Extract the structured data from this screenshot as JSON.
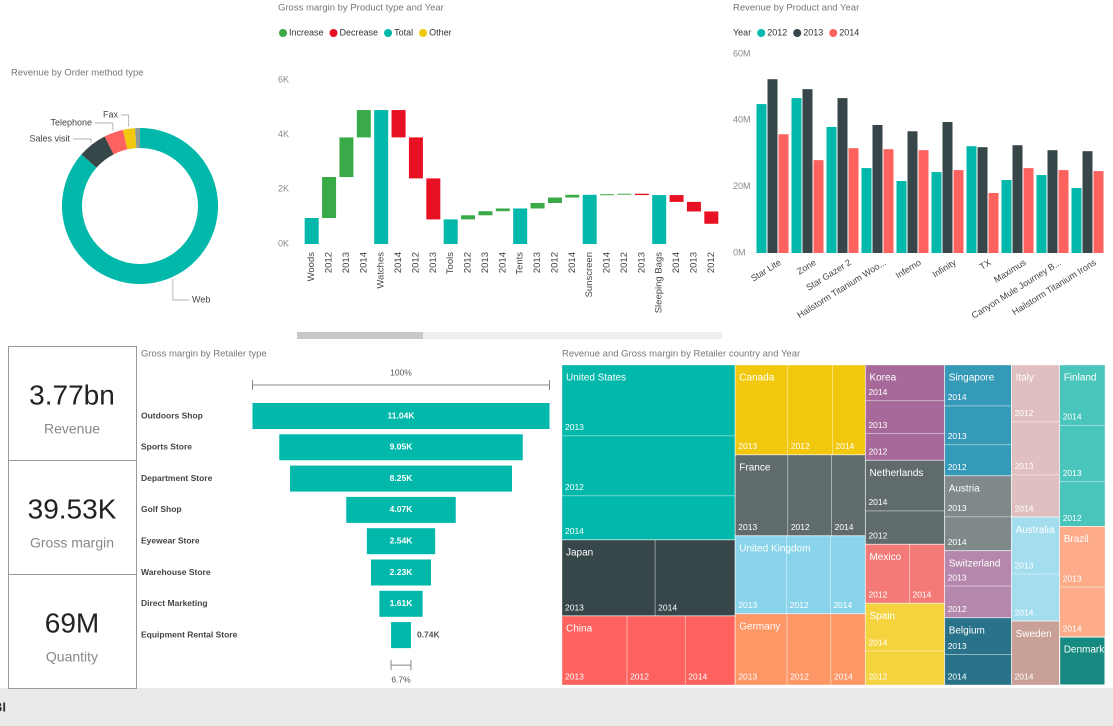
{
  "kpis": [
    {
      "value": "3.77bn",
      "label": "Revenue"
    },
    {
      "value": "39.53K",
      "label": "Gross margin"
    },
    {
      "value": "69M",
      "label": "Quantity"
    }
  ],
  "footer": {
    "text": "BI"
  },
  "chart_data": [
    {
      "type": "donut",
      "title": "Revenue by Order method type",
      "categories": [
        "Web",
        "Sales visit",
        "Telephone",
        "Fax",
        null
      ],
      "values": [
        86.5,
        6,
        4,
        2.5,
        1
      ],
      "colors": [
        "#01b8aa",
        "#374649",
        "#fd625e",
        "#f2c80f",
        "#8a9a9b"
      ]
    },
    {
      "type": "waterfall",
      "title": "Gross margin by Product type and Year",
      "legend": [
        {
          "name": "Increase",
          "color": "#3aaa48"
        },
        {
          "name": "Decrease",
          "color": "#e81123"
        },
        {
          "name": "Total",
          "color": "#01b8aa"
        },
        {
          "name": "Other",
          "color": "#f2c80f"
        }
      ],
      "categories": [
        "Woods",
        "2012",
        "2013",
        "2014",
        "Watches",
        "2014",
        "2012",
        "2013",
        "Tools",
        "2012",
        "2013",
        "2014",
        "Tents",
        "2013",
        "2012",
        "2014",
        "Sunscreen",
        "2014",
        "2012",
        "2013",
        "Sleeping Bags",
        "2014",
        "2013",
        "2012"
      ],
      "values": [
        950,
        1500,
        1450,
        1000,
        4900,
        -1000,
        -1500,
        -1500,
        900,
        150,
        150,
        100,
        1300,
        200,
        200,
        100,
        1800,
        20,
        20,
        -50,
        1790,
        -250,
        -350,
        -450
      ],
      "is_total": [
        true,
        false,
        false,
        false,
        true,
        false,
        false,
        false,
        true,
        false,
        false,
        false,
        true,
        false,
        false,
        false,
        true,
        false,
        false,
        false,
        true,
        false,
        false,
        false
      ],
      "ylim": [
        0,
        6000
      ],
      "yticks": [
        {
          "value": 0,
          "label": "0K"
        },
        {
          "value": 2000,
          "label": "2K"
        },
        {
          "value": 4000,
          "label": "4K"
        },
        {
          "value": 6000,
          "label": "6K"
        }
      ]
    },
    {
      "type": "bar",
      "title": "Revenue by Product and Year",
      "legend_title": "Year",
      "categories": [
        "Star Lite",
        "Zone",
        "Star Gazer 2",
        "Hailstorm Titanium Woo...",
        "Inferno",
        "Infinity",
        "TX",
        "Maximus",
        "Canyon Mule Journey B...",
        "Hailstorm Titanium Irons"
      ],
      "series": [
        {
          "name": "2012",
          "color": "#01b8aa",
          "values": [
            44900000,
            46700000,
            38000000,
            25600000,
            21700000,
            24400000,
            32200000,
            22000000,
            23500000,
            19600000
          ]
        },
        {
          "name": "2013",
          "color": "#374649",
          "values": [
            52400000,
            49400000,
            46700000,
            38600000,
            36700000,
            39500000,
            31900000,
            32500000,
            31000000,
            30700000
          ]
        },
        {
          "name": "2014",
          "color": "#fd625e",
          "values": [
            35800000,
            28000000,
            31600000,
            31300000,
            31000000,
            25000000,
            18100000,
            25600000,
            25000000,
            24700000
          ]
        }
      ],
      "ylim": [
        0,
        60000000
      ],
      "yticks": [
        {
          "value": 0,
          "label": "0M"
        },
        {
          "value": 20000000,
          "label": "20M"
        },
        {
          "value": 40000000,
          "label": "40M"
        },
        {
          "value": 60000000,
          "label": "60M"
        }
      ]
    },
    {
      "type": "funnel",
      "title": "Gross margin by Retailer type",
      "color": "#01b8aa",
      "categories": [
        "Outdoors Shop",
        "Sports Store",
        "Department Store",
        "Golf Shop",
        "Eyewear Store",
        "Warehouse Store",
        "Direct Marketing",
        "Equipment Rental Store"
      ],
      "values": [
        11040,
        9050,
        8250,
        4070,
        2540,
        2230,
        1610,
        740
      ],
      "value_labels": [
        "11.04K",
        "9.05K",
        "8.25K",
        "4.07K",
        "2.54K",
        "2.23K",
        "1.61K",
        "0.74K"
      ],
      "top_label": "100%",
      "bottom_label": "6.7%"
    },
    {
      "type": "treemap",
      "title": "Revenue and Gross margin by Retailer country and Year",
      "countries": [
        {
          "name": "United States",
          "color": "#01b8aa",
          "value": 642,
          "years": [
            {
              "name": "2013",
              "value": 260
            },
            {
              "name": "2012",
              "value": 220
            },
            {
              "name": "2014",
              "value": 162
            }
          ]
        },
        {
          "name": "Japan",
          "color": "#374649",
          "value": 279,
          "years": [
            {
              "name": "2013",
              "value": 150
            },
            {
              "name": "2014",
              "value": 129
            }
          ]
        },
        {
          "name": "China",
          "color": "#fd625e",
          "value": 253,
          "years": [
            {
              "name": "2013",
              "value": 95
            },
            {
              "name": "2012",
              "value": 85
            },
            {
              "name": "2014",
              "value": 73
            }
          ]
        },
        {
          "name": "Canada",
          "color": "#f2c80f",
          "value": 248,
          "years": [
            {
              "name": "2013",
              "value": 100
            },
            {
              "name": "2012",
              "value": 85
            },
            {
              "name": "2014",
              "value": 63
            }
          ]
        },
        {
          "name": "France",
          "color": "#5f6b6d",
          "value": 223,
          "years": [
            {
              "name": "2013",
              "value": 90
            },
            {
              "name": "2012",
              "value": 75
            },
            {
              "name": "2014",
              "value": 58
            }
          ]
        },
        {
          "name": "United Kingdom",
          "color": "#8ad4eb",
          "value": 215,
          "years": [
            {
              "name": "2013",
              "value": 85
            },
            {
              "name": "2012",
              "value": 72
            },
            {
              "name": "2014",
              "value": 58
            }
          ]
        },
        {
          "name": "Germany",
          "color": "#fe9666",
          "value": 196,
          "years": [
            {
              "name": "2013",
              "value": 78
            },
            {
              "name": "2012",
              "value": 66
            },
            {
              "name": "2014",
              "value": 52
            }
          ]
        },
        {
          "name": "Korea",
          "color": "#a66999",
          "value": 160,
          "years": [
            {
              "name": "2014",
              "value": 60
            },
            {
              "name": "2013",
              "value": 55
            },
            {
              "name": "2012",
              "value": 45
            }
          ]
        },
        {
          "name": "Singapore",
          "color": "#3599b8",
          "value": 157,
          "years": [
            {
              "name": "2014",
              "value": 58
            },
            {
              "name": "2013",
              "value": 55
            },
            {
              "name": "2012",
              "value": 44
            }
          ]
        },
        {
          "name": "Italy",
          "color": "#dfbfbf",
          "value": 155,
          "years": [
            {
              "name": "2012",
              "value": 58
            },
            {
              "name": "2013",
              "value": 54
            },
            {
              "name": "2014",
              "value": 43
            }
          ]
        },
        {
          "name": "Finland",
          "color": "#4ac5bb",
          "value": 155,
          "years": [
            {
              "name": "2014",
              "value": 58
            },
            {
              "name": "2013",
              "value": 54
            },
            {
              "name": "2012",
              "value": 43
            }
          ]
        },
        {
          "name": "Netherlands",
          "color": "#5f6b6d",
          "value": 141,
          "years": [
            {
              "name": "2014",
              "value": 85
            },
            {
              "name": "2012",
              "value": 56
            }
          ]
        },
        {
          "name": "Spain",
          "color": "#f5d33f",
          "value": 137,
          "years": [
            {
              "name": "2014",
              "value": 80
            },
            {
              "name": "2012",
              "value": 57
            }
          ]
        },
        {
          "name": "Austria",
          "color": "#7f898a",
          "value": 106,
          "years": [
            {
              "name": "2013",
              "value": 58
            },
            {
              "name": "2014",
              "value": 48
            }
          ]
        },
        {
          "name": "Australia",
          "color": "#a4ddee",
          "value": 106,
          "years": [
            {
              "name": "2013",
              "value": 58
            },
            {
              "name": "2014",
              "value": 48
            }
          ]
        },
        {
          "name": "Brazil",
          "color": "#fdab89",
          "value": 106,
          "years": [
            {
              "name": "2013",
              "value": 58
            },
            {
              "name": "2014",
              "value": 48
            }
          ]
        },
        {
          "name": "Mexico",
          "color": "#f47a78",
          "value": 99,
          "years": [
            {
              "name": "2012",
              "value": 55
            },
            {
              "name": "2014",
              "value": 44
            }
          ]
        },
        {
          "name": "Switzerland",
          "color": "#b687ac",
          "value": 95,
          "years": [
            {
              "name": "2013",
              "value": 50
            },
            {
              "name": "2012",
              "value": 45
            }
          ]
        },
        {
          "name": "Belgium",
          "color": "#28738a",
          "value": 95,
          "years": [
            {
              "name": "2013",
              "value": 52
            },
            {
              "name": "2014",
              "value": 43
            }
          ]
        },
        {
          "name": "Sweden",
          "color": "#c9a097",
          "value": 65,
          "years": [
            {
              "name": "2014",
              "value": 65
            }
          ]
        },
        {
          "name": "Denmark",
          "color": "#168980",
          "value": 46,
          "years": []
        }
      ]
    }
  ]
}
